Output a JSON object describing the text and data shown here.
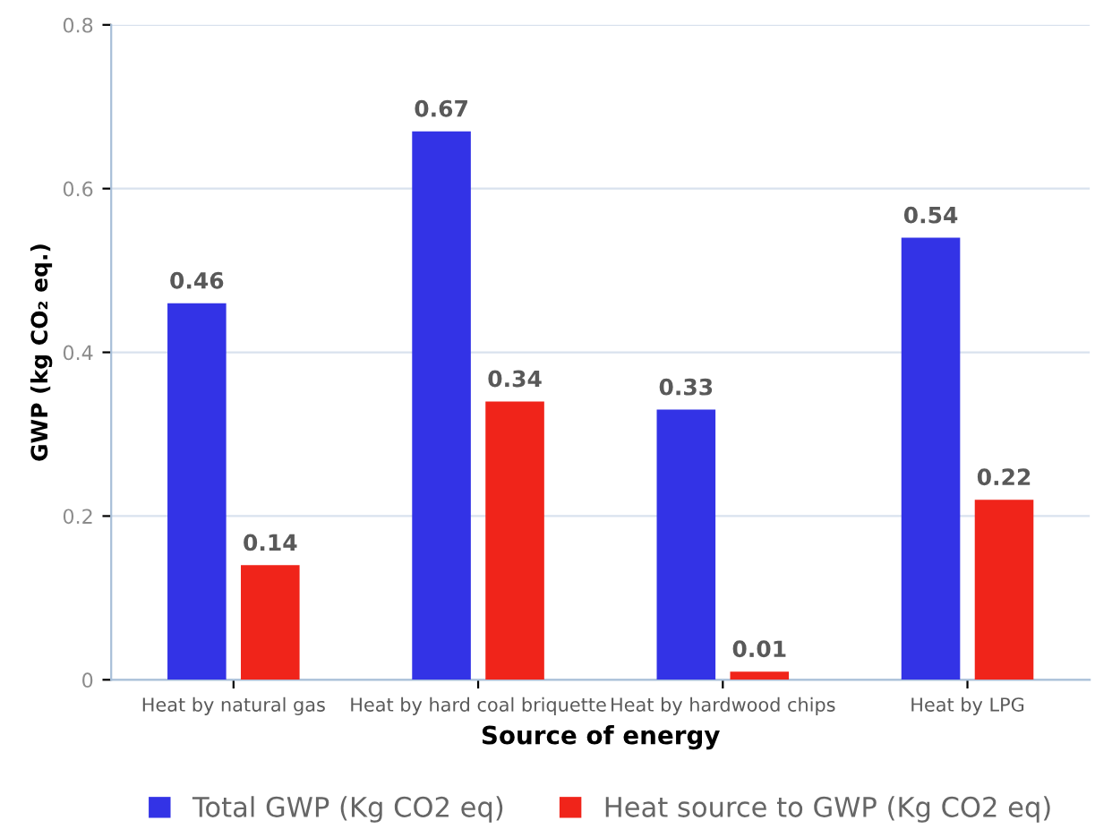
{
  "chart_data": {
    "type": "bar",
    "xlabel": "Source of energy",
    "ylabel": "GWP (kg CO₂ eq.)",
    "categories": [
      "Heat by natural gas",
      "Heat by hard coal briquette",
      "Heat by hardwood chips",
      "Heat by LPG"
    ],
    "series": [
      {
        "name": "Total GWP (Kg CO2 eq)",
        "color": "#3333e6",
        "values": [
          0.46,
          0.67,
          0.33,
          0.54
        ]
      },
      {
        "name": "Heat source to GWP (Kg CO2 eq)",
        "color": "#f0241a",
        "values": [
          0.14,
          0.34,
          0.01,
          0.22
        ]
      }
    ],
    "ylim": [
      0,
      0.8
    ],
    "yticks": [
      0,
      0.2,
      0.4,
      0.6,
      0.8
    ],
    "grid": "y",
    "legend": "bottom",
    "data_labels": true
  }
}
